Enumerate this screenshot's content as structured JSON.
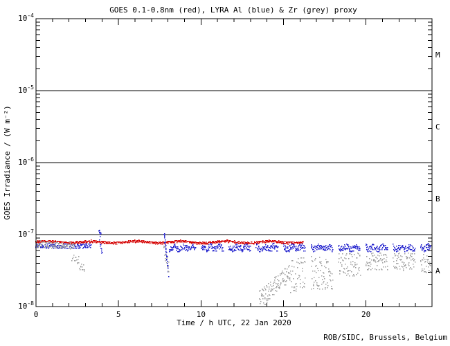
{
  "footer": {
    "credit": "ROB/SIDC, Brussels, Belgium"
  },
  "chart_data": {
    "type": "scatter",
    "title": "GOES 0.1-0.8nm (red), LYRA Al (blue) & Zr (grey) proxy",
    "xlabel": "Time / h UTC, 22 Jan 2020",
    "ylabel": "GOES Irradiance / (W m⁻²)",
    "x_range": [
      0,
      24
    ],
    "x_major_ticks": [
      0,
      5,
      10,
      15,
      20
    ],
    "x_minor_step": 1,
    "y_scale": "log",
    "y_unit": "W m-2",
    "y_decades": [
      -4,
      -5,
      -6,
      -7,
      -8
    ],
    "hlines_exponents": [
      -5,
      -6,
      -7
    ],
    "flare_classes": [
      {
        "label": "M",
        "mid_exponent": -4.5
      },
      {
        "label": "C",
        "mid_exponent": -5.5
      },
      {
        "label": "B",
        "mid_exponent": -6.5
      },
      {
        "label": "A",
        "mid_exponent": -7.5
      }
    ],
    "grid": false,
    "legend_position": "in-title",
    "seed": 20200122,
    "series": [
      {
        "id": "goes-red",
        "name": "GOES 0.1-0.8nm",
        "color": "#d40000",
        "dot": 1.5,
        "segments": [
          {
            "t0": 0.0,
            "t1": 16.2,
            "dt": 0.02,
            "v0": 7.8e-08,
            "jitter": 0.016,
            "wobble": 0.012,
            "wobble_period": 2.7
          }
        ],
        "sample_points": [
          [
            0,
            7.8e-08
          ],
          [
            2,
            7.8e-08
          ],
          [
            4,
            7.8e-08
          ],
          [
            6,
            7.7e-08
          ],
          [
            8,
            7.8e-08
          ],
          [
            10,
            8.1e-08
          ],
          [
            12,
            7.8e-08
          ],
          [
            14,
            7.8e-08
          ],
          [
            16.2,
            7.9e-08
          ]
        ]
      },
      {
        "id": "lyra-al-blue",
        "name": "LYRA Al proxy",
        "color": "#1c1ccc",
        "dot": 1.7,
        "segments": [
          {
            "t0": 0.0,
            "t1": 3.35,
            "dt": 0.02,
            "v0": 6.9e-08,
            "jitter": 0.035
          },
          {
            "t0": 3.82,
            "t1": 3.94,
            "dt": 0.012,
            "v0": 1.08e-07,
            "v1": 1e-07,
            "jitter": 0.04
          },
          {
            "t0": 3.86,
            "t1": 4.02,
            "dt": 0.016,
            "v0": 8.8e-08,
            "v1": 5.4e-08,
            "jitter": 0.05
          },
          {
            "t0": 7.78,
            "t1": 8.04,
            "dt": 0.007,
            "v0": 1.03e-07,
            "v1": 2.9e-08,
            "jitter": 0.05
          },
          {
            "t0": 8.1,
            "t1": 9.7,
            "dt": 0.018,
            "v0": 6.5e-08,
            "jitter": 0.042,
            "wobble": 0.018,
            "wobble_period": 0.55
          },
          {
            "t0": 10.04,
            "t1": 11.36,
            "dt": 0.018,
            "v0": 6.5e-08,
            "jitter": 0.042,
            "wobble": 0.018,
            "wobble_period": 0.55
          },
          {
            "t0": 11.7,
            "t1": 13.02,
            "dt": 0.018,
            "v0": 6.5e-08,
            "jitter": 0.042,
            "wobble": 0.018,
            "wobble_period": 0.55
          },
          {
            "t0": 13.36,
            "t1": 14.68,
            "dt": 0.018,
            "v0": 6.5e-08,
            "jitter": 0.042,
            "wobble": 0.018,
            "wobble_period": 0.55
          },
          {
            "t0": 15.02,
            "t1": 16.34,
            "dt": 0.018,
            "v0": 6.5e-08,
            "jitter": 0.042,
            "wobble": 0.018,
            "wobble_period": 0.55
          },
          {
            "t0": 16.68,
            "t1": 18.0,
            "dt": 0.018,
            "v0": 6.5e-08,
            "jitter": 0.042,
            "wobble": 0.018,
            "wobble_period": 0.55
          },
          {
            "t0": 18.34,
            "t1": 19.66,
            "dt": 0.018,
            "v0": 6.5e-08,
            "jitter": 0.042,
            "wobble": 0.018,
            "wobble_period": 0.55
          },
          {
            "t0": 20.0,
            "t1": 21.32,
            "dt": 0.018,
            "v0": 6.5e-08,
            "jitter": 0.042,
            "wobble": 0.018,
            "wobble_period": 0.55
          },
          {
            "t0": 21.66,
            "t1": 22.98,
            "dt": 0.018,
            "v0": 6.5e-08,
            "jitter": 0.042,
            "wobble": 0.018,
            "wobble_period": 0.55
          },
          {
            "t0": 23.32,
            "t1": 24.0,
            "dt": 0.018,
            "v0": 6.5e-08,
            "jitter": 0.042,
            "wobble": 0.018,
            "wobble_period": 0.55
          }
        ],
        "sample_points": [
          [
            0,
            6.9e-08
          ],
          [
            2,
            6.9e-08
          ],
          [
            3.35,
            6.9e-08
          ],
          [
            3.88,
            1.1e-07
          ],
          [
            7.8,
            1e-07
          ],
          [
            8.0,
            3e-08
          ],
          [
            9,
            6.5e-08
          ],
          [
            12,
            6.5e-08
          ],
          [
            15,
            6.5e-08
          ],
          [
            18,
            6.5e-08
          ],
          [
            21,
            6.5e-08
          ],
          [
            24,
            6.5e-08
          ]
        ]
      },
      {
        "id": "lyra-zr-grey",
        "name": "LYRA Zr proxy",
        "color": "#9c9c9c",
        "dot": 1.7,
        "segments": [
          {
            "t0": 0.0,
            "t1": 2.35,
            "dt": 0.022,
            "v0": 7.3e-08,
            "v1": 7e-08,
            "jitter": 0.05
          },
          {
            "t0": 2.2,
            "t1": 2.95,
            "dt": 0.03,
            "v0": 5.3e-08,
            "v1": 3.3e-08,
            "jitter": 0.09
          },
          {
            "t0": 7.76,
            "t1": 8.06,
            "dt": 0.02,
            "v0": 6.2e-08,
            "v1": 3.2e-08,
            "jitter": 0.1
          },
          {
            "t0": 13.55,
            "t1": 15.4,
            "dt": 0.016,
            "v0": 1.2e-08,
            "v1": 3e-08,
            "jitter": 0.13
          },
          {
            "t0": 15.4,
            "t1": 16.34,
            "dt": 0.018,
            "v0": 2.6e-08,
            "v1": 3.1e-08,
            "jitter": 0.24
          },
          {
            "t0": 16.68,
            "t1": 18.0,
            "dt": 0.018,
            "v0": 2.9e-08,
            "jitter": 0.23
          },
          {
            "t0": 18.34,
            "t1": 19.66,
            "dt": 0.02,
            "v0": 3.8e-08,
            "jitter": 0.16
          },
          {
            "t0": 20.0,
            "t1": 21.32,
            "dt": 0.02,
            "v0": 4.2e-08,
            "jitter": 0.12
          },
          {
            "t0": 21.66,
            "t1": 22.98,
            "dt": 0.02,
            "v0": 4.2e-08,
            "jitter": 0.12
          },
          {
            "t0": 23.32,
            "t1": 24.0,
            "dt": 0.02,
            "v0": 4e-08,
            "jitter": 0.13
          }
        ],
        "sample_points": [
          [
            0,
            7.3e-08
          ],
          [
            2.3,
            7e-08
          ],
          [
            2.9,
            3.4e-08
          ],
          [
            7.9,
            4.5e-08
          ],
          [
            13.6,
            1.2e-08
          ],
          [
            15.4,
            3e-08
          ],
          [
            17,
            2.9e-08
          ],
          [
            19,
            3.8e-08
          ],
          [
            21,
            4.2e-08
          ],
          [
            23,
            4.2e-08
          ],
          [
            24,
            4e-08
          ]
        ]
      }
    ]
  }
}
